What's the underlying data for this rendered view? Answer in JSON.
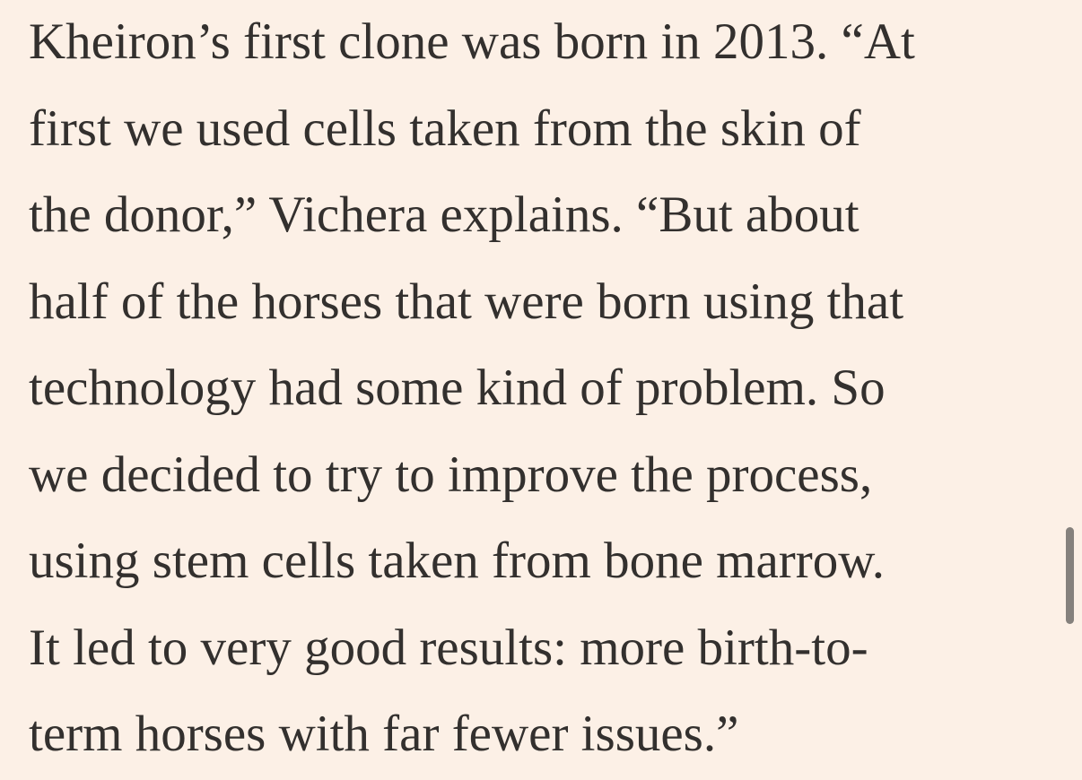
{
  "article": {
    "lines": [
      "Kheiron’s first clone was born in 2013. “At",
      "first we used cells taken from the skin of",
      "the donor,” Vichera explains. “But about",
      "half of the horses that were born using that",
      "technology had some kind of problem. So",
      "we decided to try to improve the process,",
      "using stem cells taken from bone marrow.",
      "It led to very good results: more birth-to-",
      "term horses with far fewer issues.”"
    ]
  },
  "colors": {
    "background": "#fcf0e6",
    "text": "#33302e",
    "scrollbar": "#85817d"
  }
}
